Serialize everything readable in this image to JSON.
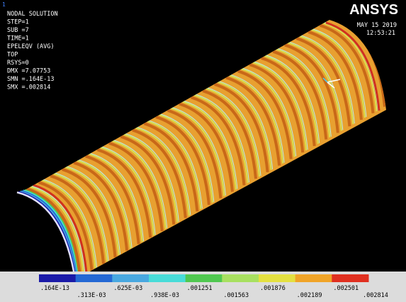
{
  "window_number": "1",
  "header": {
    "lines": [
      "NODAL SOLUTION",
      "STEP=1",
      "SUB =7",
      "TIME=1",
      "EPELEQV  (AVG)",
      "TOP",
      "RSYS=0",
      "DMX =7.07753",
      "SMN =.164E-13",
      "SMX =.002814"
    ]
  },
  "logo": "ANSYS",
  "date": "MAY 15 2019",
  "time": "12:53:21",
  "legend": {
    "labels": [
      ".164E-13",
      ".313E-03",
      ".625E-03",
      ".938E-03",
      ".001251",
      ".001563",
      ".001876",
      ".002189",
      ".002501",
      ".002814"
    ],
    "colors": [
      "#1a1aa8",
      "#2468d4",
      "#48a8e0",
      "#48dcd8",
      "#50c850",
      "#a8e060",
      "#e4e040",
      "#f0a428",
      "#e03020"
    ]
  }
}
